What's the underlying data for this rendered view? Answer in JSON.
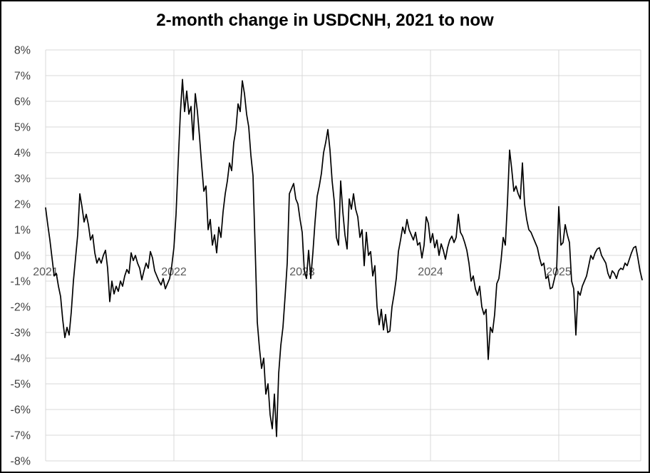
{
  "chart_data": {
    "type": "line",
    "title": "2-month change in USDCNH, 2021 to now",
    "xlabel": "",
    "ylabel": "",
    "grid": true,
    "legend": "none",
    "y_axis": {
      "min": -8,
      "max": 8,
      "step": 1,
      "unit": "%",
      "tick_labels": [
        "8%",
        "7%",
        "6%",
        "5%",
        "4%",
        "3%",
        "2%",
        "1%",
        "0%",
        "-1%",
        "-2%",
        "-3%",
        "-4%",
        "-5%",
        "-6%",
        "-7%",
        "-8%"
      ],
      "tick_values": [
        8,
        7,
        6,
        5,
        4,
        3,
        2,
        1,
        0,
        -1,
        -2,
        -3,
        -4,
        -5,
        -6,
        -7,
        -8
      ]
    },
    "x_axis": {
      "min_year": 2021.0,
      "max_year": 2025.65,
      "ticks": [
        {
          "label": "2021",
          "year": 2021
        },
        {
          "label": "2022",
          "year": 2022
        },
        {
          "label": "2023",
          "year": 2023
        },
        {
          "label": "2024",
          "year": 2024
        },
        {
          "label": "2025",
          "year": 2025
        }
      ]
    },
    "style": {
      "line_color": "#000000",
      "grid_color": "#d9d9d9",
      "y_label_color": "#404040",
      "x_label_color": "#595959",
      "title_color": "#000000",
      "background": "#ffffff",
      "border_color": "#000000"
    },
    "series": [
      {
        "name": "2-month % change in USDCNH",
        "color": "#000000",
        "x_start_year": 2021.0,
        "x_points_per_year": 60,
        "values": [
          1.85,
          1.2,
          0.6,
          -0.1,
          -0.8,
          -0.7,
          -1.2,
          -1.6,
          -2.5,
          -3.2,
          -2.8,
          -3.1,
          -2.2,
          -1.0,
          -0.1,
          0.8,
          2.4,
          1.9,
          1.3,
          1.6,
          1.2,
          0.6,
          0.8,
          0.1,
          -0.3,
          -0.1,
          -0.3,
          0.0,
          0.2,
          -0.5,
          -1.8,
          -1.0,
          -1.5,
          -1.2,
          -1.4,
          -1.0,
          -1.2,
          -0.8,
          -0.55,
          -0.7,
          0.1,
          -0.2,
          0.0,
          -0.3,
          -0.5,
          -0.95,
          -0.6,
          -0.3,
          -0.5,
          0.15,
          -0.1,
          -0.6,
          -0.8,
          -1.0,
          -1.15,
          -0.9,
          -1.3,
          -1.1,
          -0.9,
          -0.4,
          0.3,
          1.6,
          3.6,
          5.5,
          6.85,
          5.6,
          6.4,
          5.5,
          5.8,
          4.5,
          6.3,
          5.6,
          4.6,
          3.5,
          2.5,
          2.7,
          1.0,
          1.4,
          0.4,
          0.8,
          0.1,
          1.1,
          0.7,
          1.7,
          2.4,
          2.9,
          3.6,
          3.3,
          4.4,
          4.9,
          5.9,
          5.6,
          6.8,
          6.3,
          5.5,
          5.0,
          3.9,
          3.1,
          0.3,
          -2.6,
          -3.6,
          -4.4,
          -4.0,
          -5.4,
          -5.0,
          -6.2,
          -6.75,
          -5.4,
          -7.05,
          -4.6,
          -3.5,
          -2.8,
          -1.6,
          -0.3,
          2.4,
          2.6,
          2.8,
          2.2,
          2.0,
          1.4,
          0.9,
          -0.6,
          -0.9,
          0.2,
          -0.9,
          0.1,
          1.3,
          2.3,
          2.7,
          3.2,
          4.0,
          4.4,
          4.9,
          4.1,
          2.9,
          2.1,
          0.7,
          0.4,
          2.9,
          1.7,
          0.8,
          0.25,
          2.2,
          1.8,
          2.4,
          1.8,
          1.5,
          0.7,
          1.0,
          -0.4,
          0.9,
          0.0,
          0.15,
          -0.8,
          -0.4,
          -2.0,
          -2.7,
          -2.1,
          -2.9,
          -2.3,
          -3.0,
          -2.95,
          -2.0,
          -1.5,
          -0.9,
          0.15,
          0.6,
          1.1,
          0.85,
          1.4,
          1.0,
          0.8,
          0.6,
          0.9,
          0.4,
          0.5,
          -0.1,
          0.4,
          1.5,
          1.25,
          0.5,
          0.85,
          0.3,
          0.6,
          0.0,
          0.45,
          0.2,
          -0.15,
          0.3,
          0.6,
          0.75,
          0.5,
          0.7,
          1.6,
          0.9,
          0.75,
          0.5,
          0.2,
          -0.3,
          -1.0,
          -0.8,
          -1.3,
          -1.55,
          -1.2,
          -2.0,
          -2.3,
          -2.1,
          -4.05,
          -2.8,
          -3.0,
          -2.3,
          -1.1,
          -0.9,
          -0.2,
          0.7,
          0.4,
          2.05,
          4.1,
          3.35,
          2.5,
          2.7,
          2.4,
          2.2,
          3.6,
          2.0,
          1.4,
          1.0,
          0.9,
          0.7,
          0.5,
          0.3,
          -0.1,
          -0.4,
          -0.3,
          -0.9,
          -0.8,
          -1.3,
          -1.25,
          -0.9,
          -0.55,
          1.9,
          0.4,
          0.5,
          1.2,
          0.8,
          0.5,
          -1.0,
          -1.3,
          -3.1,
          -1.4,
          -1.55,
          -1.2,
          -1.0,
          -0.8,
          -0.4,
          0.0,
          -0.15,
          0.1,
          0.25,
          0.3,
          0.0,
          -0.15,
          -0.3,
          -0.7,
          -0.9,
          -0.6,
          -0.7,
          -0.9,
          -0.6,
          -0.5,
          -0.55,
          -0.3,
          -0.4,
          -0.15,
          0.1,
          0.3,
          0.35,
          -0.1,
          -0.6,
          -0.95
        ]
      }
    ]
  }
}
